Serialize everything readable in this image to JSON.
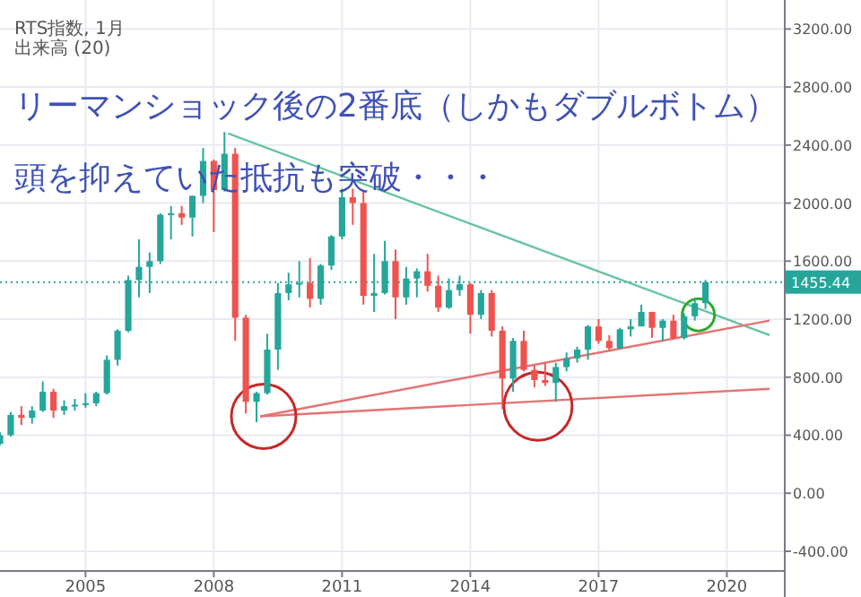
{
  "chart_data": {
    "type": "candlestick",
    "title": "リーマンショック後の2番底（しかもダブルボトム）",
    "subtitle": "頭を抑えていた抵抗も突破・・・",
    "annotations": [
      "RTS指数, 1月",
      "出来高 (20)"
    ],
    "x": [
      "2003-01",
      "2003-04",
      "2003-07",
      "2003-10",
      "2004-01",
      "2004-04",
      "2004-07",
      "2004-10",
      "2005-01",
      "2005-04",
      "2005-07",
      "2005-10",
      "2006-01",
      "2006-04",
      "2006-07",
      "2006-10",
      "2007-01",
      "2007-04",
      "2007-07",
      "2007-10",
      "2008-01",
      "2008-04",
      "2008-07",
      "2008-10",
      "2009-01",
      "2009-04",
      "2009-07",
      "2009-10",
      "2010-01",
      "2010-04",
      "2010-07",
      "2010-10",
      "2011-01",
      "2011-04",
      "2011-07",
      "2011-10",
      "2012-01",
      "2012-04",
      "2012-07",
      "2012-10",
      "2013-01",
      "2013-04",
      "2013-07",
      "2013-10",
      "2014-01",
      "2014-04",
      "2014-07",
      "2014-10",
      "2015-01",
      "2015-04",
      "2015-07",
      "2015-10",
      "2016-01",
      "2016-04",
      "2016-07",
      "2016-10",
      "2017-01",
      "2017-04",
      "2017-07",
      "2017-10",
      "2018-01",
      "2018-04",
      "2018-07",
      "2018-10",
      "2019-01",
      "2019-04",
      "2019-07"
    ],
    "ohlc": [
      [
        340,
        420,
        330,
        400
      ],
      [
        400,
        560,
        390,
        540
      ],
      [
        540,
        600,
        470,
        520
      ],
      [
        520,
        600,
        480,
        570
      ],
      [
        570,
        770,
        560,
        700
      ],
      [
        700,
        720,
        520,
        570
      ],
      [
        570,
        640,
        540,
        600
      ],
      [
        600,
        650,
        570,
        610
      ],
      [
        610,
        690,
        590,
        620
      ],
      [
        620,
        700,
        600,
        690
      ],
      [
        690,
        950,
        680,
        920
      ],
      [
        920,
        1130,
        880,
        1120
      ],
      [
        1120,
        1500,
        1110,
        1470
      ],
      [
        1470,
        1750,
        1350,
        1560
      ],
      [
        1560,
        1660,
        1380,
        1600
      ],
      [
        1600,
        1930,
        1580,
        1920
      ],
      [
        1920,
        1980,
        1750,
        1930
      ],
      [
        1930,
        1980,
        1850,
        1900
      ],
      [
        1900,
        2050,
        1770,
        2050
      ],
      [
        2050,
        2380,
        2000,
        2290
      ],
      [
        2290,
        2300,
        1800,
        2090
      ],
      [
        2090,
        2490,
        2080,
        2340
      ],
      [
        2340,
        2380,
        1050,
        1210
      ],
      [
        1210,
        1230,
        550,
        630
      ],
      [
        630,
        700,
        490,
        690
      ],
      [
        690,
        1100,
        680,
        990
      ],
      [
        990,
        1450,
        850,
        1380
      ],
      [
        1380,
        1520,
        1330,
        1440
      ],
      [
        1440,
        1600,
        1350,
        1450
      ],
      [
        1450,
        1620,
        1280,
        1340
      ],
      [
        1340,
        1580,
        1300,
        1570
      ],
      [
        1570,
        1780,
        1540,
        1770
      ],
      [
        1770,
        2100,
        1750,
        2040
      ],
      [
        2040,
        2100,
        1850,
        2000
      ],
      [
        2000,
        2080,
        1300,
        1360
      ],
      [
        1360,
        1650,
        1250,
        1380
      ],
      [
        1380,
        1740,
        1370,
        1600
      ],
      [
        1600,
        1680,
        1200,
        1350
      ],
      [
        1350,
        1560,
        1300,
        1480
      ],
      [
        1480,
        1550,
        1350,
        1530
      ],
      [
        1530,
        1650,
        1390,
        1430
      ],
      [
        1430,
        1500,
        1250,
        1280
      ],
      [
        1280,
        1480,
        1270,
        1400
      ],
      [
        1400,
        1500,
        1360,
        1440
      ],
      [
        1440,
        1450,
        1100,
        1230
      ],
      [
        1230,
        1400,
        1200,
        1380
      ],
      [
        1380,
        1400,
        1080,
        1120
      ],
      [
        1120,
        1150,
        580,
        790
      ],
      [
        790,
        1070,
        700,
        1050
      ],
      [
        1050,
        1120,
        840,
        850
      ],
      [
        850,
        880,
        730,
        780
      ],
      [
        780,
        900,
        740,
        760
      ],
      [
        760,
        900,
        630,
        870
      ],
      [
        870,
        970,
        840,
        930
      ],
      [
        930,
        1010,
        900,
        990
      ],
      [
        990,
        1160,
        920,
        1150
      ],
      [
        1150,
        1200,
        1030,
        1050
      ],
      [
        1050,
        1090,
        980,
        1000
      ],
      [
        1000,
        1140,
        990,
        1130
      ],
      [
        1130,
        1200,
        1080,
        1150
      ],
      [
        1150,
        1300,
        1150,
        1250
      ],
      [
        1250,
        1250,
        1070,
        1140
      ],
      [
        1140,
        1200,
        1050,
        1190
      ],
      [
        1190,
        1230,
        1060,
        1070
      ],
      [
        1070,
        1240,
        1060,
        1220
      ],
      [
        1220,
        1340,
        1190,
        1310
      ],
      [
        1310,
        1470,
        1270,
        1455.44
      ]
    ],
    "colors": [
      "#26a69a",
      "#26a69a",
      "#ef5350",
      "#26a69a",
      "#26a69a",
      "#ef5350",
      "#26a69a",
      "#26a69a",
      "#26a69a",
      "#26a69a",
      "#26a69a",
      "#26a69a",
      "#26a69a",
      "#26a69a",
      "#26a69a",
      "#26a69a",
      "#26a69a",
      "#ef5350",
      "#26a69a",
      "#26a69a",
      "#ef5350",
      "#26a69a",
      "#ef5350",
      "#ef5350",
      "#26a69a",
      "#26a69a",
      "#26a69a",
      "#26a69a",
      "#26a69a",
      "#ef5350",
      "#26a69a",
      "#26a69a",
      "#26a69a",
      "#ef5350",
      "#ef5350",
      "#26a69a",
      "#26a69a",
      "#ef5350",
      "#26a69a",
      "#26a69a",
      "#ef5350",
      "#ef5350",
      "#26a69a",
      "#26a69a",
      "#ef5350",
      "#26a69a",
      "#ef5350",
      "#ef5350",
      "#26a69a",
      "#ef5350",
      "#ef5350",
      "#ef5350",
      "#26a69a",
      "#26a69a",
      "#26a69a",
      "#26a69a",
      "#ef5350",
      "#ef5350",
      "#26a69a",
      "#26a69a",
      "#26a69a",
      "#ef5350",
      "#26a69a",
      "#ef5350",
      "#26a69a",
      "#26a69a",
      "#26a69a"
    ],
    "series": [
      {
        "type": "line",
        "color": "#66c2a5",
        "x": [
          "2008-05",
          "2021-01"
        ],
        "values": [
          2480,
          1090
        ]
      },
      {
        "type": "line",
        "color": "#e57373",
        "x": [
          "2009-02",
          "2021-01"
        ],
        "values": [
          530,
          1190
        ]
      },
      {
        "type": "line",
        "color": "#e57373",
        "x": [
          "2009-02",
          "2021-01"
        ],
        "values": [
          530,
          720
        ]
      }
    ],
    "ref_lines": [
      {
        "axis": "y",
        "value": 1455.44,
        "label": "1455.44",
        "color": "#26a69a",
        "line_style": "dotted"
      }
    ],
    "xlim": [
      "2003-01",
      "2021-05"
    ],
    "ylim": [
      -530,
      3400
    ],
    "xticks": [
      {
        "value": "2005",
        "label": "2005"
      },
      {
        "value": "2008",
        "label": "2008"
      },
      {
        "value": "2011",
        "label": "2011"
      },
      {
        "value": "2014",
        "label": "2014"
      },
      {
        "value": "2017",
        "label": "2017"
      },
      {
        "value": "2020",
        "label": "2020"
      }
    ],
    "yticks": [
      {
        "value": -400,
        "label": "-400.00"
      },
      {
        "value": 0,
        "label": "0.00"
      },
      {
        "value": 400,
        "label": "400.00"
      },
      {
        "value": 800,
        "label": "800.00"
      },
      {
        "value": 1200,
        "label": "1200.00"
      },
      {
        "value": 1600,
        "label": "1600.00"
      },
      {
        "value": 2000,
        "label": "2000.00"
      },
      {
        "value": 2400,
        "label": "2400.00"
      },
      {
        "value": 2800,
        "label": "2800.00"
      },
      {
        "value": 3200,
        "label": "3200.00"
      }
    ],
    "grid": true
  }
}
